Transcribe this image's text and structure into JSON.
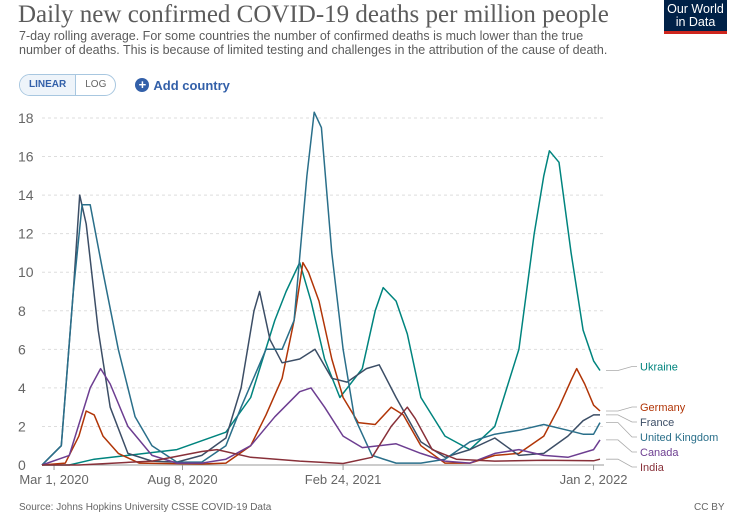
{
  "header": {
    "title": "Daily new confirmed COVID-19 deaths per million people",
    "subtitle": "7-day rolling average. For some countries the number of confirmed deaths is much lower than the true number of deaths. This is because of limited testing and challenges in the attribution of the cause of death.",
    "logo_line1": "Our World",
    "logo_line2": "in Data"
  },
  "controls": {
    "linear_label": "LINEAR",
    "log_label": "LOG",
    "add_country_label": "Add country"
  },
  "footer": {
    "source": "Source: Johns Hopkins University CSSE COVID-19 Data",
    "license": "CC BY"
  },
  "colors": {
    "grid": "#dddddd",
    "axis_text": "#666666"
  },
  "chart_data": {
    "type": "line",
    "title": "Daily new confirmed COVID-19 deaths per million people",
    "xlabel": "",
    "ylabel": "",
    "x_range": [
      "2020-02-15",
      "2022-01-15"
    ],
    "ylim": [
      0,
      18
    ],
    "y_ticks": [
      0,
      2,
      4,
      6,
      8,
      10,
      12,
      14,
      16,
      18
    ],
    "x_ticks": [
      {
        "date": "2020-03-01",
        "label": "Mar 1, 2020"
      },
      {
        "date": "2020-08-08",
        "label": "Aug 8, 2020"
      },
      {
        "date": "2021-02-24",
        "label": "Feb 24, 2021"
      },
      {
        "date": "2022-01-02",
        "label": "Jan 2, 2022"
      }
    ],
    "grid": "horizontal dashed",
    "legend": "right, labels at line ends",
    "series": [
      {
        "name": "Ukraine",
        "color": "#00847e",
        "points": [
          [
            "2020-02-15",
            0
          ],
          [
            "2020-03-20",
            0
          ],
          [
            "2020-04-20",
            0.3
          ],
          [
            "2020-06-01",
            0.5
          ],
          [
            "2020-08-01",
            0.8
          ],
          [
            "2020-10-01",
            1.7
          ],
          [
            "2020-11-01",
            3.5
          ],
          [
            "2020-12-01",
            7.5
          ],
          [
            "2020-12-15",
            9
          ],
          [
            "2021-01-01",
            10.5
          ],
          [
            "2021-01-15",
            8.5
          ],
          [
            "2021-02-01",
            5.5
          ],
          [
            "2021-02-20",
            3.5
          ],
          [
            "2021-03-20",
            5
          ],
          [
            "2021-04-05",
            8
          ],
          [
            "2021-04-15",
            9.2
          ],
          [
            "2021-05-01",
            8.5
          ],
          [
            "2021-05-15",
            6.8
          ],
          [
            "2021-06-01",
            3.5
          ],
          [
            "2021-07-01",
            1.5
          ],
          [
            "2021-08-01",
            0.8
          ],
          [
            "2021-09-01",
            2
          ],
          [
            "2021-10-01",
            6
          ],
          [
            "2021-10-20",
            12
          ],
          [
            "2021-11-01",
            15
          ],
          [
            "2021-11-08",
            16.3
          ],
          [
            "2021-11-20",
            15.7
          ],
          [
            "2021-12-05",
            11
          ],
          [
            "2021-12-20",
            7
          ],
          [
            "2022-01-02",
            5.4
          ],
          [
            "2022-01-10",
            4.9
          ]
        ]
      },
      {
        "name": "Germany",
        "color": "#b13507",
        "points": [
          [
            "2020-02-15",
            0
          ],
          [
            "2020-03-15",
            0.1
          ],
          [
            "2020-04-01",
            1.5
          ],
          [
            "2020-04-10",
            2.8
          ],
          [
            "2020-04-20",
            2.6
          ],
          [
            "2020-05-01",
            1.5
          ],
          [
            "2020-05-20",
            0.6
          ],
          [
            "2020-06-15",
            0.1
          ],
          [
            "2020-09-01",
            0.05
          ],
          [
            "2020-10-01",
            0.1
          ],
          [
            "2020-11-01",
            1
          ],
          [
            "2020-11-20",
            2.6
          ],
          [
            "2020-12-10",
            4.5
          ],
          [
            "2020-12-25",
            7.5
          ],
          [
            "2021-01-05",
            10.5
          ],
          [
            "2021-01-12",
            10
          ],
          [
            "2021-01-25",
            8.5
          ],
          [
            "2021-02-10",
            5.5
          ],
          [
            "2021-02-24",
            3.5
          ],
          [
            "2021-03-15",
            2.2
          ],
          [
            "2021-04-05",
            2.1
          ],
          [
            "2021-04-25",
            3
          ],
          [
            "2021-05-10",
            2.6
          ],
          [
            "2021-06-01",
            1
          ],
          [
            "2021-07-01",
            0.1
          ],
          [
            "2021-08-01",
            0.1
          ],
          [
            "2021-09-01",
            0.5
          ],
          [
            "2021-10-01",
            0.6
          ],
          [
            "2021-11-01",
            1.5
          ],
          [
            "2021-11-20",
            3
          ],
          [
            "2021-12-05",
            4.4
          ],
          [
            "2021-12-12",
            5
          ],
          [
            "2021-12-22",
            4.2
          ],
          [
            "2022-01-02",
            3.1
          ],
          [
            "2022-01-10",
            2.8
          ]
        ]
      },
      {
        "name": "France",
        "color": "#3c4e66",
        "points": [
          [
            "2020-02-15",
            0
          ],
          [
            "2020-03-10",
            1
          ],
          [
            "2020-03-25",
            9
          ],
          [
            "2020-04-02",
            14
          ],
          [
            "2020-04-10",
            12.5
          ],
          [
            "2020-04-25",
            7
          ],
          [
            "2020-05-10",
            3
          ],
          [
            "2020-06-01",
            0.6
          ],
          [
            "2020-07-01",
            0.2
          ],
          [
            "2020-08-01",
            0.15
          ],
          [
            "2020-09-01",
            0.5
          ],
          [
            "2020-10-01",
            1.4
          ],
          [
            "2020-10-20",
            4
          ],
          [
            "2020-11-05",
            8
          ],
          [
            "2020-11-12",
            9
          ],
          [
            "2020-11-25",
            6.5
          ],
          [
            "2020-12-10",
            5.3
          ],
          [
            "2021-01-01",
            5.5
          ],
          [
            "2021-01-20",
            6
          ],
          [
            "2021-02-10",
            4.5
          ],
          [
            "2021-03-01",
            4.3
          ],
          [
            "2021-03-25",
            5
          ],
          [
            "2021-04-10",
            5.2
          ],
          [
            "2021-05-01",
            3.5
          ],
          [
            "2021-06-01",
            1.2
          ],
          [
            "2021-07-01",
            0.4
          ],
          [
            "2021-08-01",
            0.8
          ],
          [
            "2021-09-01",
            1.4
          ],
          [
            "2021-10-01",
            0.5
          ],
          [
            "2021-11-01",
            0.6
          ],
          [
            "2021-12-01",
            1.5
          ],
          [
            "2021-12-20",
            2.3
          ],
          [
            "2022-01-02",
            2.6
          ],
          [
            "2022-01-10",
            2.6
          ]
        ]
      },
      {
        "name": "United Kingdom",
        "color": "#2a6f8a",
        "points": [
          [
            "2020-02-15",
            0
          ],
          [
            "2020-03-10",
            1
          ],
          [
            "2020-03-25",
            9
          ],
          [
            "2020-04-05",
            13.5
          ],
          [
            "2020-04-15",
            13.5
          ],
          [
            "2020-05-01",
            10
          ],
          [
            "2020-05-20",
            6
          ],
          [
            "2020-06-10",
            2.5
          ],
          [
            "2020-07-01",
            1
          ],
          [
            "2020-08-01",
            0.15
          ],
          [
            "2020-09-01",
            0.15
          ],
          [
            "2020-10-01",
            1
          ],
          [
            "2020-10-20",
            3
          ],
          [
            "2020-11-20",
            6
          ],
          [
            "2020-12-10",
            6
          ],
          [
            "2020-12-25",
            7.5
          ],
          [
            "2021-01-10",
            15
          ],
          [
            "2021-01-19",
            18.3
          ],
          [
            "2021-01-28",
            17.5
          ],
          [
            "2021-02-10",
            11
          ],
          [
            "2021-02-24",
            6
          ],
          [
            "2021-03-10",
            2.5
          ],
          [
            "2021-04-01",
            0.5
          ],
          [
            "2021-05-01",
            0.1
          ],
          [
            "2021-06-01",
            0.1
          ],
          [
            "2021-07-01",
            0.3
          ],
          [
            "2021-08-01",
            1.2
          ],
          [
            "2021-09-01",
            1.6
          ],
          [
            "2021-10-01",
            1.8
          ],
          [
            "2021-11-01",
            2.1
          ],
          [
            "2021-12-01",
            1.8
          ],
          [
            "2021-12-20",
            1.6
          ],
          [
            "2022-01-02",
            1.6
          ],
          [
            "2022-01-10",
            2.2
          ]
        ]
      },
      {
        "name": "Canada",
        "color": "#6d3e91",
        "points": [
          [
            "2020-02-15",
            0
          ],
          [
            "2020-03-20",
            0.5
          ],
          [
            "2020-04-15",
            4
          ],
          [
            "2020-04-28",
            5
          ],
          [
            "2020-05-10",
            4.2
          ],
          [
            "2020-06-01",
            2
          ],
          [
            "2020-07-01",
            0.5
          ],
          [
            "2020-08-01",
            0.1
          ],
          [
            "2020-09-01",
            0.1
          ],
          [
            "2020-10-01",
            0.3
          ],
          [
            "2020-11-01",
            1
          ],
          [
            "2020-12-01",
            2.5
          ],
          [
            "2021-01-01",
            3.8
          ],
          [
            "2021-01-15",
            4
          ],
          [
            "2021-02-01",
            3
          ],
          [
            "2021-02-24",
            1.5
          ],
          [
            "2021-03-20",
            0.9
          ],
          [
            "2021-05-01",
            1.1
          ],
          [
            "2021-06-01",
            0.6
          ],
          [
            "2021-07-01",
            0.2
          ],
          [
            "2021-08-01",
            0.1
          ],
          [
            "2021-09-01",
            0.6
          ],
          [
            "2021-10-01",
            0.8
          ],
          [
            "2021-11-01",
            0.5
          ],
          [
            "2021-12-01",
            0.4
          ],
          [
            "2022-01-02",
            0.8
          ],
          [
            "2022-01-10",
            1.3
          ]
        ]
      },
      {
        "name": "India",
        "color": "#883039",
        "points": [
          [
            "2020-02-15",
            0
          ],
          [
            "2020-04-01",
            0
          ],
          [
            "2020-05-15",
            0.1
          ],
          [
            "2020-07-01",
            0.2
          ],
          [
            "2020-09-01",
            0.7
          ],
          [
            "2020-09-20",
            0.8
          ],
          [
            "2020-11-01",
            0.4
          ],
          [
            "2021-01-01",
            0.2
          ],
          [
            "2021-02-24",
            0.08
          ],
          [
            "2021-04-01",
            0.4
          ],
          [
            "2021-04-25",
            2
          ],
          [
            "2021-05-15",
            3
          ],
          [
            "2021-05-25",
            2.4
          ],
          [
            "2021-06-15",
            0.8
          ],
          [
            "2021-07-15",
            0.3
          ],
          [
            "2021-09-01",
            0.2
          ],
          [
            "2021-11-01",
            0.25
          ],
          [
            "2022-01-02",
            0.22
          ],
          [
            "2022-01-10",
            0.3
          ]
        ]
      }
    ]
  }
}
